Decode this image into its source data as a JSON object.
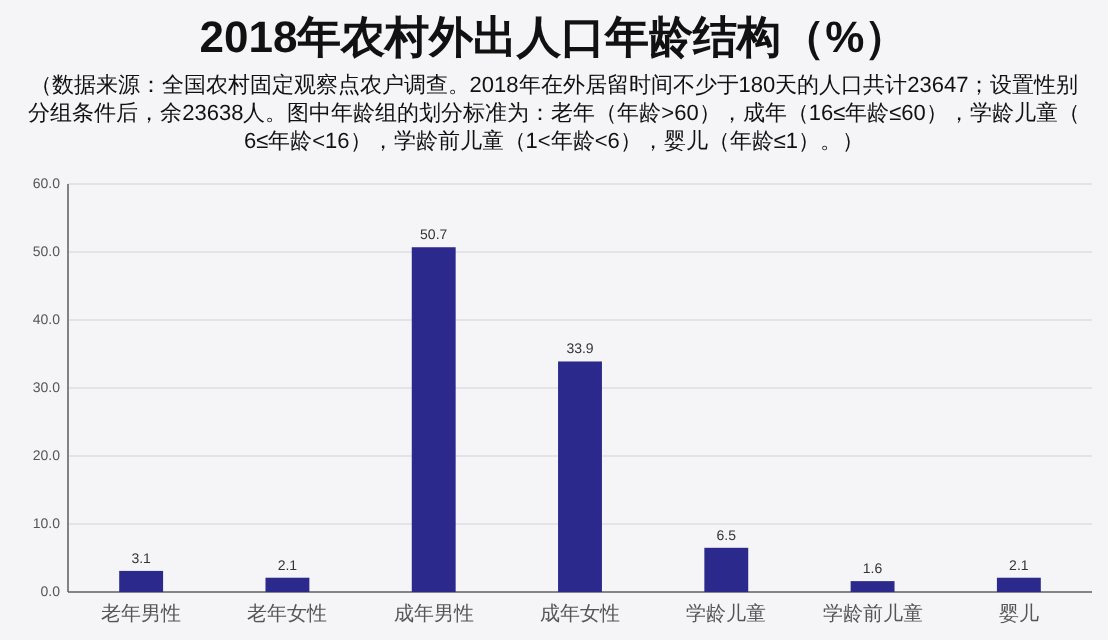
{
  "chart_data": {
    "type": "bar",
    "title": "2018年农村外出人口年龄结构（%）",
    "subtitle": "（数据来源：全国农村固定观察点农户调查。2018年在外居留时间不少于180天的人口共计23647；设置性别分组条件后，余23638人。图中年龄组的划分标准为：老年（年龄>60），成年（16≤年龄≤60），学龄儿童（6≤年龄<16），学龄前儿童（1<年龄<6），婴儿（年龄≤1）。）",
    "categories": [
      "老年男性",
      "老年女性",
      "成年男性",
      "成年女性",
      "学龄儿童",
      "学龄前儿童",
      "婴儿"
    ],
    "values": [
      3.1,
      2.1,
      50.7,
      33.9,
      6.5,
      1.6,
      2.1
    ],
    "color": "#2b2a8c",
    "ylim": [
      0,
      60
    ],
    "yticks": [
      {
        "value": 0,
        "label": "0.0"
      },
      {
        "value": 10,
        "label": "10.0"
      },
      {
        "value": 20,
        "label": "20.0"
      },
      {
        "value": 30,
        "label": "30.0"
      },
      {
        "value": 40,
        "label": "40.0"
      },
      {
        "value": 50,
        "label": "50.0"
      },
      {
        "value": 60,
        "label": "60.0"
      }
    ],
    "grid": "y",
    "data_labels": true
  }
}
